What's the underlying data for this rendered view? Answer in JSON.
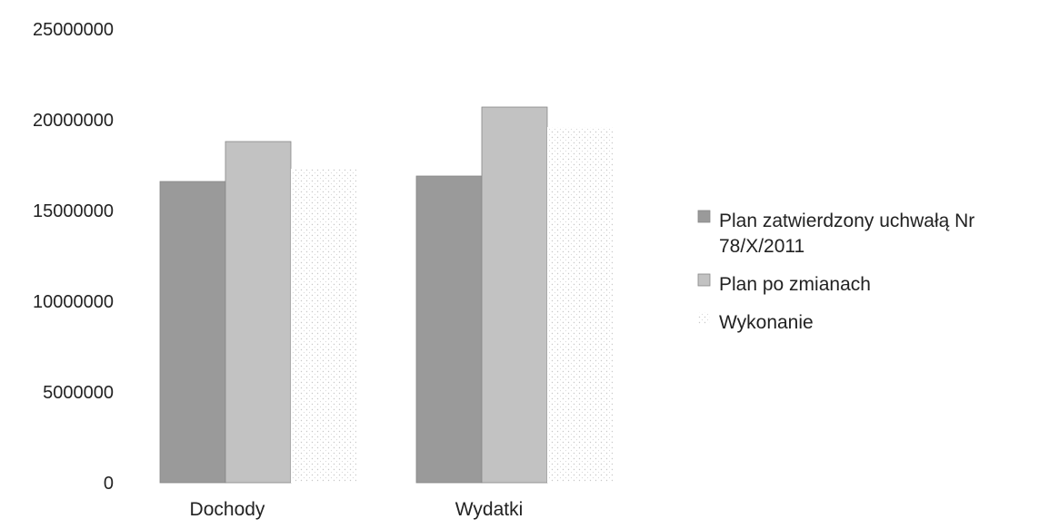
{
  "chart_data": {
    "type": "bar",
    "categories": [
      "Dochody",
      "Wydatki"
    ],
    "series": [
      {
        "name": "Plan zatwierdzony uchwałą Nr 78/X/2011",
        "values": [
          16600000,
          16900000
        ],
        "color": "#9a9a9a"
      },
      {
        "name": "Plan po zmianach",
        "values": [
          18800000,
          20700000
        ],
        "color": "#c2c2c2"
      },
      {
        "name": "Wykonanie",
        "values": [
          17300000,
          19600000
        ],
        "color": "#e4e4e4"
      }
    ],
    "title": "",
    "xlabel": "",
    "ylabel": "",
    "ylim": [
      0,
      25000000
    ],
    "yticks": [
      "0",
      "5000000",
      "10000000",
      "15000000",
      "20000000",
      "25000000"
    ],
    "grid": false,
    "legend_position": "right",
    "legend_lines": [
      [
        "Plan zatwierdzony uchwałą Nr",
        "78/X/2011"
      ],
      [
        "Plan po zmianach"
      ],
      [
        "Wykonanie"
      ]
    ]
  }
}
